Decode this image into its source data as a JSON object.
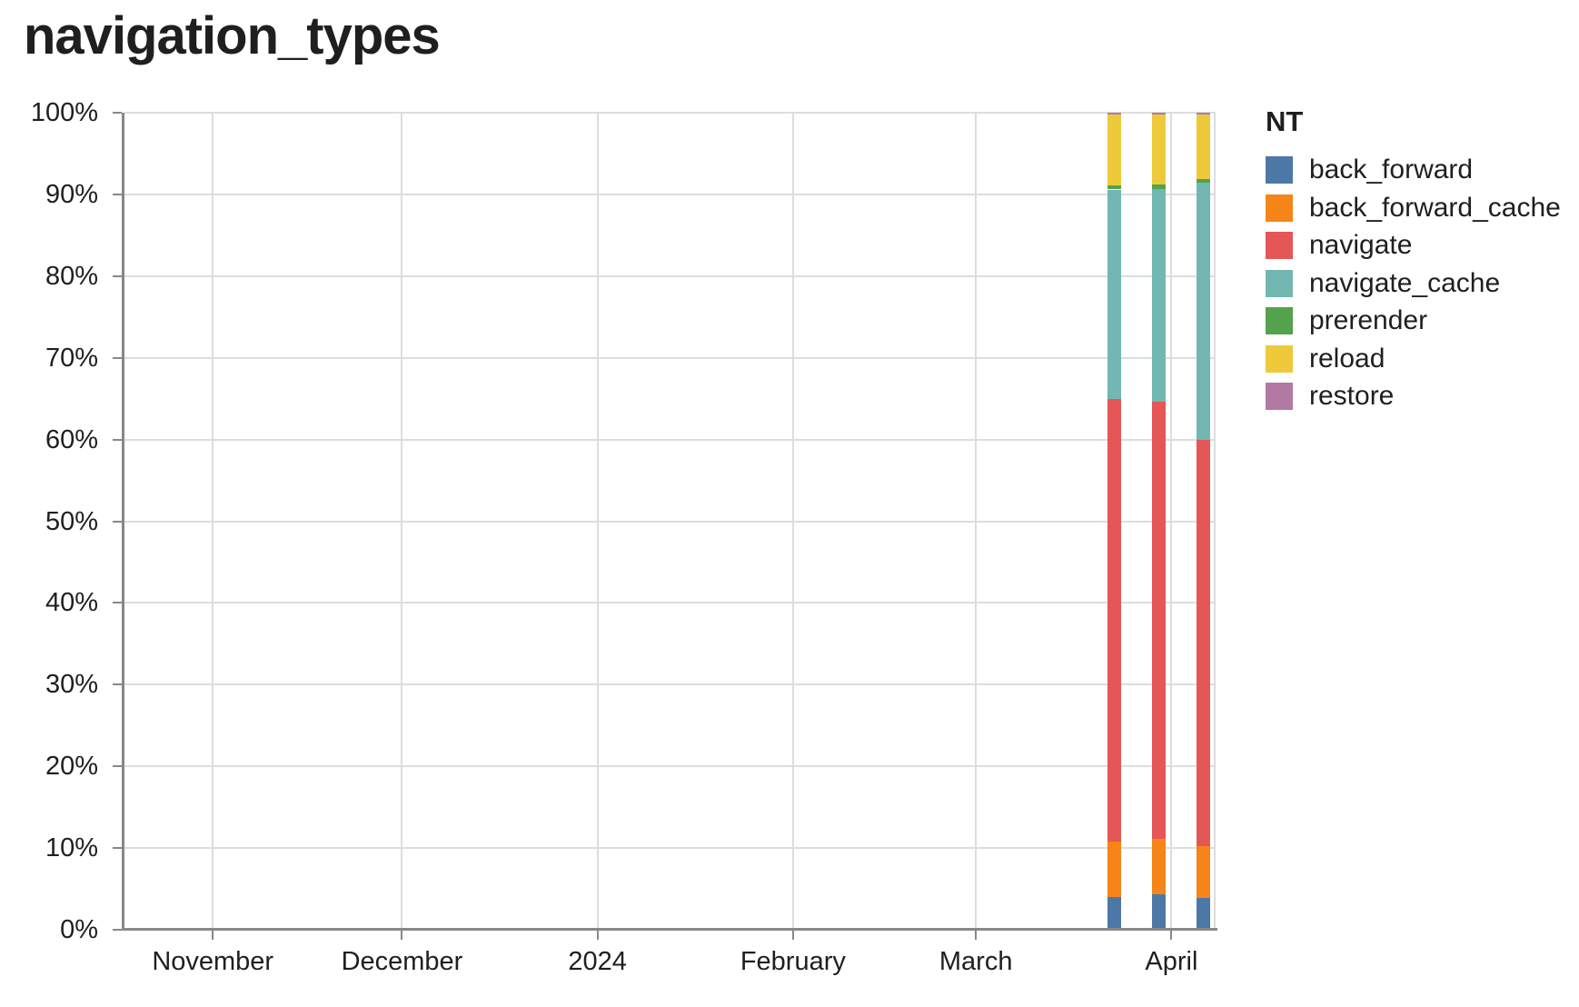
{
  "title": "navigation_types",
  "legend": {
    "title": "NT"
  },
  "chart_data": {
    "type": "bar",
    "stacked": true,
    "normalized_percent": true,
    "title": "navigation_types",
    "legend_title": "NT",
    "legend_position": "right",
    "grid": true,
    "ylim": [
      0,
      100
    ],
    "y_ticks": [
      "0%",
      "10%",
      "20%",
      "30%",
      "40%",
      "50%",
      "60%",
      "70%",
      "80%",
      "90%",
      "100%"
    ],
    "x_domain": [
      "2023-10-18",
      "2024-04-08"
    ],
    "x_ticks": [
      {
        "date": "2023-11-01",
        "label": "November"
      },
      {
        "date": "2023-12-01",
        "label": "December"
      },
      {
        "date": "2024-01-01",
        "label": "2024"
      },
      {
        "date": "2024-02-01",
        "label": "February"
      },
      {
        "date": "2024-03-01",
        "label": "March"
      },
      {
        "date": "2024-04-01",
        "label": "April"
      }
    ],
    "x": [
      "2024-03-23",
      "2024-03-30",
      "2024-04-06"
    ],
    "series": [
      {
        "name": "back_forward",
        "color": "#4C78A8",
        "values": [
          4.0,
          4.3,
          3.9
        ]
      },
      {
        "name": "back_forward_cache",
        "color": "#F58518",
        "values": [
          6.8,
          6.8,
          6.3
        ]
      },
      {
        "name": "navigate",
        "color": "#E45756",
        "values": [
          54.2,
          53.5,
          49.7
        ]
      },
      {
        "name": "navigate_cache",
        "color": "#72B7B2",
        "values": [
          25.6,
          26.1,
          31.5
        ]
      },
      {
        "name": "prerender",
        "color": "#54A24B",
        "values": [
          0.5,
          0.5,
          0.5
        ]
      },
      {
        "name": "reload",
        "color": "#EECA3B",
        "values": [
          8.7,
          8.6,
          7.9
        ]
      },
      {
        "name": "restore",
        "color": "#B279A2",
        "values": [
          0.2,
          0.2,
          0.2
        ]
      }
    ],
    "axis_colors": {
      "gridline": "#dddddd",
      "domain": "#888888",
      "label": "#1f1f1f"
    }
  }
}
